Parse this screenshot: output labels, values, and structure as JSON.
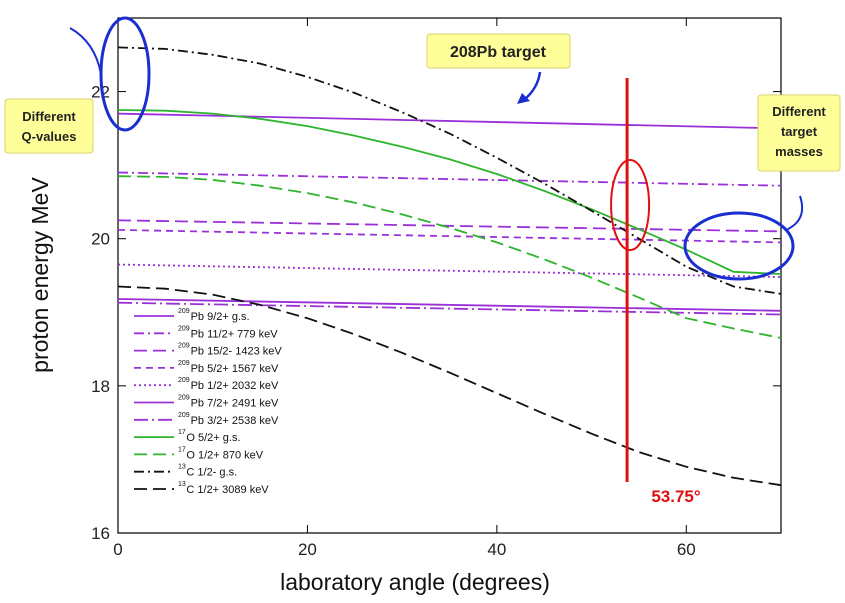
{
  "chart_data": {
    "type": "line",
    "xlabel": "laboratory angle (degrees)",
    "ylabel": "proton energy MeV",
    "xlim": [
      0,
      70
    ],
    "ylim": [
      16,
      23
    ],
    "xticks": [
      0,
      20,
      40,
      60
    ],
    "yticks": [
      16,
      18,
      20,
      22
    ],
    "grid": false,
    "legend_position": "bottom-left",
    "series": [
      {
        "name": "Pb 9/2+ g.s.",
        "isotope": "209",
        "color": "#9b30d9",
        "dash": "solid",
        "x": [
          0,
          70
        ],
        "y": [
          21.7,
          21.5
        ]
      },
      {
        "name": "Pb 11/2+ 779 keV",
        "isotope": "209",
        "color": "#9b30d9",
        "dash": "dashdot",
        "x": [
          0,
          70
        ],
        "y": [
          20.9,
          20.72
        ]
      },
      {
        "name": "Pb 15/2- 1423 keV",
        "isotope": "209",
        "color": "#9b30d9",
        "dash": "longdash",
        "x": [
          0,
          70
        ],
        "y": [
          20.25,
          20.1
        ]
      },
      {
        "name": "Pb 5/2+ 1567 keV",
        "isotope": "209",
        "color": "#9b30d9",
        "dash": "dash",
        "x": [
          0,
          70
        ],
        "y": [
          20.12,
          19.95
        ]
      },
      {
        "name": "Pb 1/2+ 2032 keV",
        "isotope": "209",
        "color": "#9b30d9",
        "dash": "dot",
        "x": [
          0,
          70
        ],
        "y": [
          19.65,
          19.48
        ]
      },
      {
        "name": "Pb 7/2+ 2491 keV",
        "isotope": "209",
        "color": "#9b30d9",
        "dash": "solid",
        "x": [
          0,
          70
        ],
        "y": [
          19.18,
          19.02
        ]
      },
      {
        "name": "Pb 3/2+ 2538 keV",
        "isotope": "209",
        "color": "#9b30d9",
        "dash": "dashdotlong",
        "x": [
          0,
          70
        ],
        "y": [
          19.13,
          18.97
        ]
      },
      {
        "name": "O 5/2+ g.s.",
        "isotope": "17",
        "color": "#2db52d",
        "dash": "solid",
        "x": [
          0,
          5,
          10,
          15,
          20,
          25,
          30,
          35,
          40,
          45,
          50,
          55,
          60,
          65,
          70
        ],
        "y": [
          21.75,
          21.74,
          21.7,
          21.63,
          21.53,
          21.4,
          21.25,
          21.08,
          20.88,
          20.65,
          20.4,
          20.13,
          19.85,
          19.55,
          19.52
        ]
      },
      {
        "name": "O 1/2+ 870 keV",
        "isotope": "17",
        "color": "#2db52d",
        "dash": "longdash",
        "x": [
          0,
          5,
          10,
          15,
          20,
          25,
          30,
          35,
          40,
          45,
          50,
          55,
          60,
          65,
          70
        ],
        "y": [
          20.85,
          20.84,
          20.8,
          20.72,
          20.62,
          20.49,
          20.33,
          20.15,
          19.95,
          19.72,
          19.47,
          19.2,
          18.92,
          18.78,
          18.65
        ]
      },
      {
        "name": "C 1/2- g.s.",
        "isotope": "13",
        "color": "#111111",
        "dash": "dashdot",
        "x": [
          0,
          5,
          10,
          15,
          20,
          25,
          30,
          35,
          40,
          45,
          50,
          55,
          60,
          65,
          70
        ],
        "y": [
          22.6,
          22.58,
          22.5,
          22.38,
          22.2,
          21.98,
          21.72,
          21.43,
          21.1,
          20.75,
          20.38,
          20.0,
          19.62,
          19.35,
          19.25
        ]
      },
      {
        "name": "C 1/2+ 3089 keV",
        "isotope": "13",
        "color": "#111111",
        "dash": "longdash",
        "x": [
          0,
          5,
          10,
          15,
          20,
          25,
          30,
          35,
          40,
          45,
          50,
          55,
          60,
          65,
          70
        ],
        "y": [
          19.35,
          19.32,
          19.24,
          19.1,
          18.92,
          18.7,
          18.45,
          18.18,
          17.9,
          17.62,
          17.35,
          17.1,
          16.9,
          16.75,
          16.65
        ]
      }
    ],
    "annotations": {
      "target_label": "208Pb target",
      "q_values_label": [
        "Different",
        "Q-values"
      ],
      "masses_label": [
        "Different",
        "target",
        "masses"
      ],
      "angle_label": "53.75°",
      "angle_value": 53.75
    }
  },
  "colors": {
    "purple": "#9b30d9",
    "green": "#2db52d",
    "black": "#111111",
    "red_marker": "#e01010",
    "callout_blue": "#1a2fd1",
    "callout_fill": "#ffff99"
  }
}
